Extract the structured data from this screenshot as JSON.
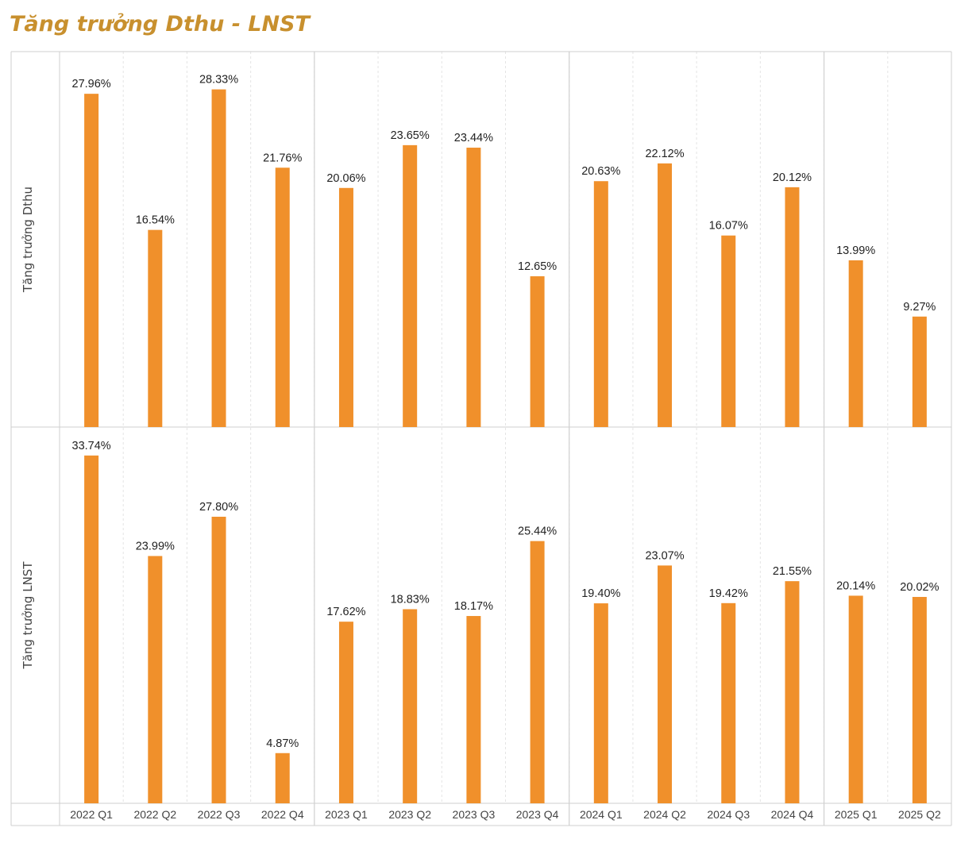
{
  "colors": {
    "bar": "#F0902B",
    "title": "#C8902E",
    "text": "#222222",
    "axis_text": "#444444",
    "grid_major": "#D0D0D0",
    "grid_minor": "#E4E4E4",
    "frame": "#CFCFCF"
  },
  "chart_data": {
    "type": "bar",
    "title": "Tăng trưởng Dthu - LNST",
    "categories": [
      "2022 Q1",
      "2022 Q2",
      "2022 Q3",
      "2022 Q4",
      "2023 Q1",
      "2023 Q2",
      "2023 Q3",
      "2023 Q4",
      "2024 Q1",
      "2024 Q2",
      "2024 Q3",
      "2024 Q4",
      "2025 Q1",
      "2025 Q2"
    ],
    "year_groups": [
      {
        "year": "2022",
        "count": 4
      },
      {
        "year": "2023",
        "count": 4
      },
      {
        "year": "2024",
        "count": 4
      },
      {
        "year": "2025",
        "count": 2
      }
    ],
    "series": [
      {
        "ylabel": "Tăng trưởng Dthu",
        "values": [
          27.96,
          16.54,
          28.33,
          21.76,
          20.06,
          23.65,
          23.44,
          12.65,
          20.63,
          22.12,
          16.07,
          20.12,
          13.99,
          9.27
        ],
        "labels": [
          "27.96%",
          "16.54%",
          "28.33%",
          "21.76%",
          "20.06%",
          "23.65%",
          "23.44%",
          "12.65%",
          "20.63%",
          "22.12%",
          "16.07%",
          "20.12%",
          "13.99%",
          "9.27%"
        ],
        "ylim": [
          0,
          31.5
        ]
      },
      {
        "ylabel": "Tăng trưởng LNST",
        "values": [
          33.74,
          23.99,
          27.8,
          4.87,
          17.62,
          18.83,
          18.17,
          25.44,
          19.4,
          23.07,
          19.42,
          21.55,
          20.14,
          20.02
        ],
        "labels": [
          "33.74%",
          "23.99%",
          "27.80%",
          "4.87%",
          "17.62%",
          "18.83%",
          "18.17%",
          "25.44%",
          "19.40%",
          "23.07%",
          "19.42%",
          "21.55%",
          "20.14%",
          "20.02%"
        ],
        "ylim": [
          0,
          36.5
        ]
      }
    ],
    "grid": true,
    "legend": "none"
  }
}
